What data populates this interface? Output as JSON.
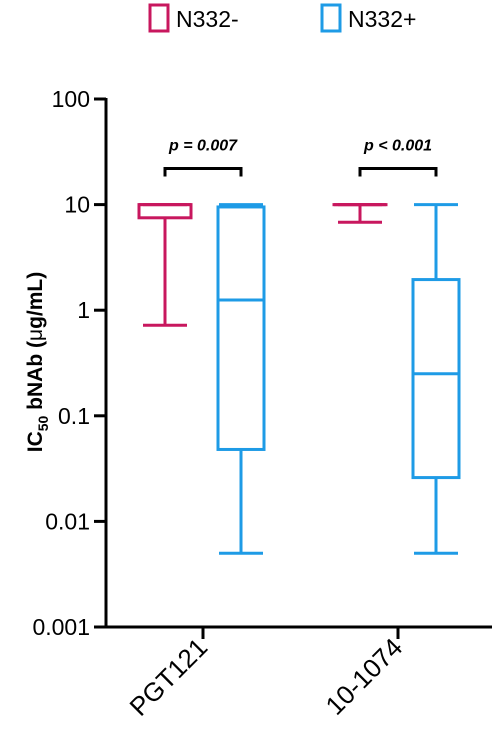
{
  "chart_data": {
    "type": "box",
    "yscale": "log",
    "ylim": [
      0.001,
      100
    ],
    "yticks": [
      {
        "value": 100,
        "label": "100"
      },
      {
        "value": 10,
        "label": "10"
      },
      {
        "value": 1,
        "label": "1"
      },
      {
        "value": 0.1,
        "label": "0.1"
      },
      {
        "value": 0.01,
        "label": "0.01"
      },
      {
        "value": 0.001,
        "label": "0.001"
      }
    ],
    "ylabel": {
      "prefix": "IC",
      "subscript": "50",
      "suffix": " bNAb (",
      "mu": "μ",
      "unit": "g/mL)"
    },
    "categories": [
      "PGT121",
      "10-1074"
    ],
    "legend": {
      "position": "top",
      "entries": [
        "N332-",
        "N332+"
      ]
    },
    "series": [
      {
        "name": "N332-",
        "color": "#c8175e",
        "boxes": [
          {
            "category": "PGT121",
            "min": 0.72,
            "q1": 7.5,
            "median": 10,
            "q3": 10,
            "max": 10
          },
          {
            "category": "10-1074",
            "min": 6.8,
            "q1": 10,
            "median": 10,
            "q3": 10,
            "max": 10
          }
        ]
      },
      {
        "name": "N332+",
        "color": "#1e9be6",
        "boxes": [
          {
            "category": "PGT121",
            "min": 0.005,
            "q1": 0.048,
            "median": 1.25,
            "q3": 9.5,
            "max": 10
          },
          {
            "category": "10-1074",
            "min": 0.005,
            "q1": 0.026,
            "median": 0.25,
            "q3": 1.95,
            "max": 10
          }
        ]
      }
    ],
    "annotations": [
      {
        "category": "PGT121",
        "text": "p = 0.007",
        "y": 22
      },
      {
        "category": "10-1074",
        "text": "p < 0.001",
        "y": 22
      }
    ]
  }
}
